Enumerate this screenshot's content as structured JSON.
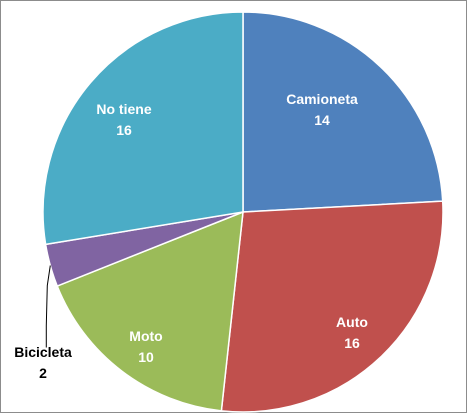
{
  "chart_data": {
    "type": "pie",
    "start_angle_deg": 0,
    "direction": "clockwise",
    "slices": [
      {
        "label": "Camioneta",
        "value": 14,
        "value_text": "14",
        "color": "#4f81bd",
        "label_color": "#ffffff"
      },
      {
        "label": "Auto",
        "value": 16,
        "value_text": "16",
        "color": "#c0504d",
        "label_color": "#ffffff"
      },
      {
        "label": "Moto",
        "value": 10,
        "value_text": "10",
        "color": "#9bbb59",
        "label_color": "#ffffff"
      },
      {
        "label": "Bicicleta",
        "value": 2,
        "value_text": "2",
        "color": "#8064a2",
        "label_color": "#000000"
      },
      {
        "label": "No tiene",
        "value": 16,
        "value_text": "16",
        "color": "#4bacc6",
        "label_color": "#ffffff"
      }
    ],
    "slice_border_color": "#ffffff",
    "title": "",
    "legend": "none"
  }
}
